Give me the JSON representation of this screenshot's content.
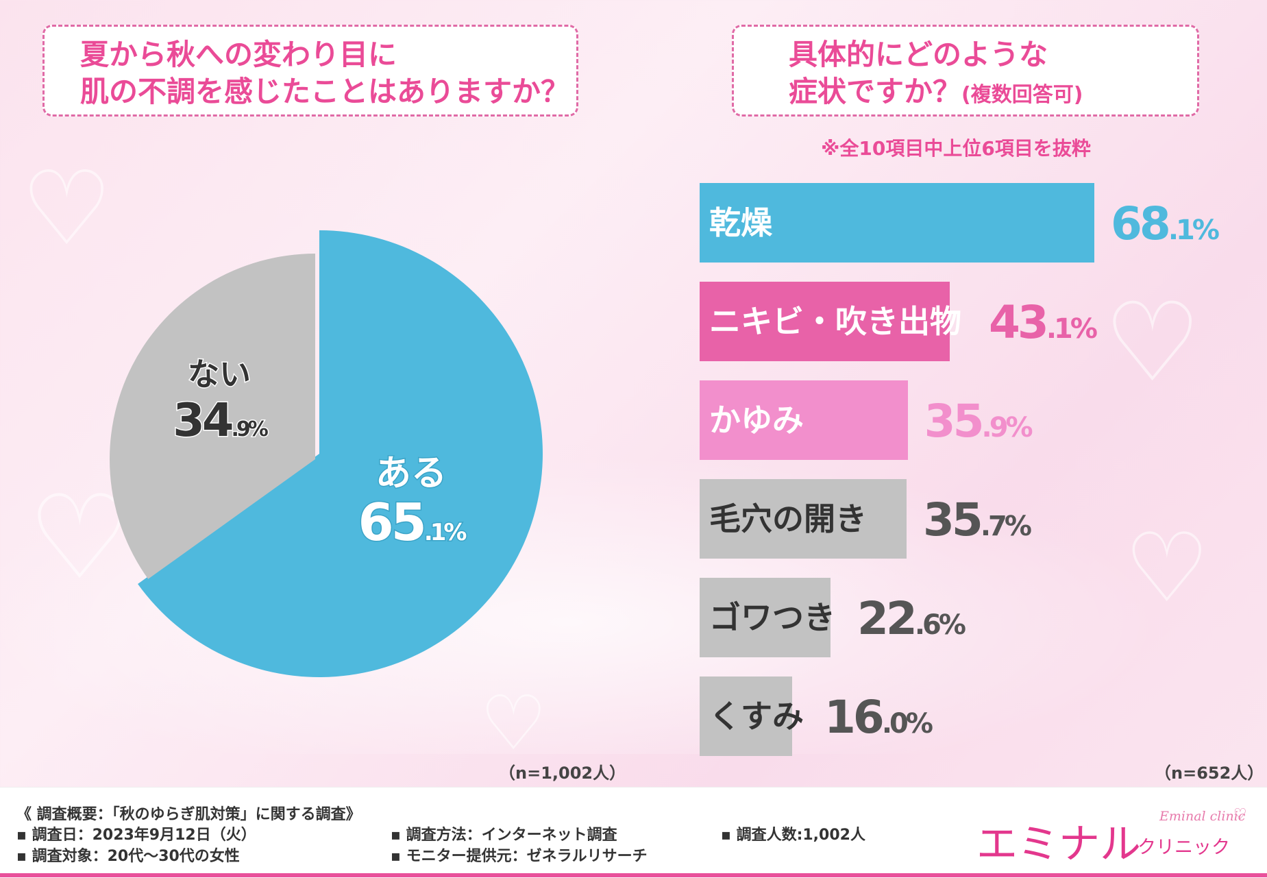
{
  "questions": {
    "left": {
      "line1": "夏から秋への変わり目に",
      "line2": "肌の不調を感じたことはありますか？"
    },
    "right": {
      "line1": "具体的にどのような",
      "line2_main": "症状ですか？",
      "line2_small": "(複数回答可)"
    }
  },
  "note": "※全10項目中上位6項目を抜粋",
  "chart_data": [
    {
      "type": "pie",
      "title": "夏から秋への変わり目に肌の不調を感じたことはありますか？",
      "sample": "（n=1,002人）",
      "slices": [
        {
          "label": "ある",
          "value": 65.1,
          "int": "65",
          "dec": ".1%",
          "color": "#4fb9dd"
        },
        {
          "label": "ない",
          "value": 34.9,
          "int": "34",
          "dec": ".9%",
          "color": "#c2c2c2"
        }
      ]
    },
    {
      "type": "bar",
      "orientation": "horizontal",
      "title": "具体的にどのような症状ですか？(複数回答可)",
      "sample": "（n=652人）",
      "xlim": [
        0,
        100
      ],
      "categories": [
        "乾燥",
        "ニキビ・吹き出物",
        "かゆみ",
        "毛穴の開き",
        "ゴワつき",
        "くすみ"
      ],
      "values": [
        68.1,
        43.1,
        35.9,
        35.7,
        22.6,
        16.0
      ],
      "value_int": [
        "68",
        "43",
        "35",
        "35",
        "22",
        "16"
      ],
      "value_dec": [
        ".1%",
        ".1%",
        ".9%",
        ".7%",
        ".6%",
        ".0%"
      ],
      "bar_colors": [
        "#4fb9dd",
        "#e862a8",
        "#f28fcc",
        "#c2c2c2",
        "#c2c2c2",
        "#c2c2c2"
      ],
      "label_colors": [
        "#ffffff",
        "#ffffff",
        "#ffffff",
        "#333333",
        "#333333",
        "#333333"
      ],
      "value_colors": [
        "#4fb9dd",
        "#e862a8",
        "#f28fcc",
        "#555555",
        "#555555",
        "#555555"
      ]
    }
  ],
  "footer": {
    "summary": "《 調査概要：「秋のゆらぎ肌対策」に関する調査》",
    "date": "調査日：2023年9月12日（火）",
    "target": "調査対象：20代〜30代の女性",
    "method": "調査方法：インターネット調査",
    "provider": "モニター提供元：ゼネラルリサーチ",
    "count": "調査人数:1,002人"
  },
  "brand": {
    "main": "エミナル",
    "kana": "クリニック",
    "en": "Eminal clinic"
  }
}
